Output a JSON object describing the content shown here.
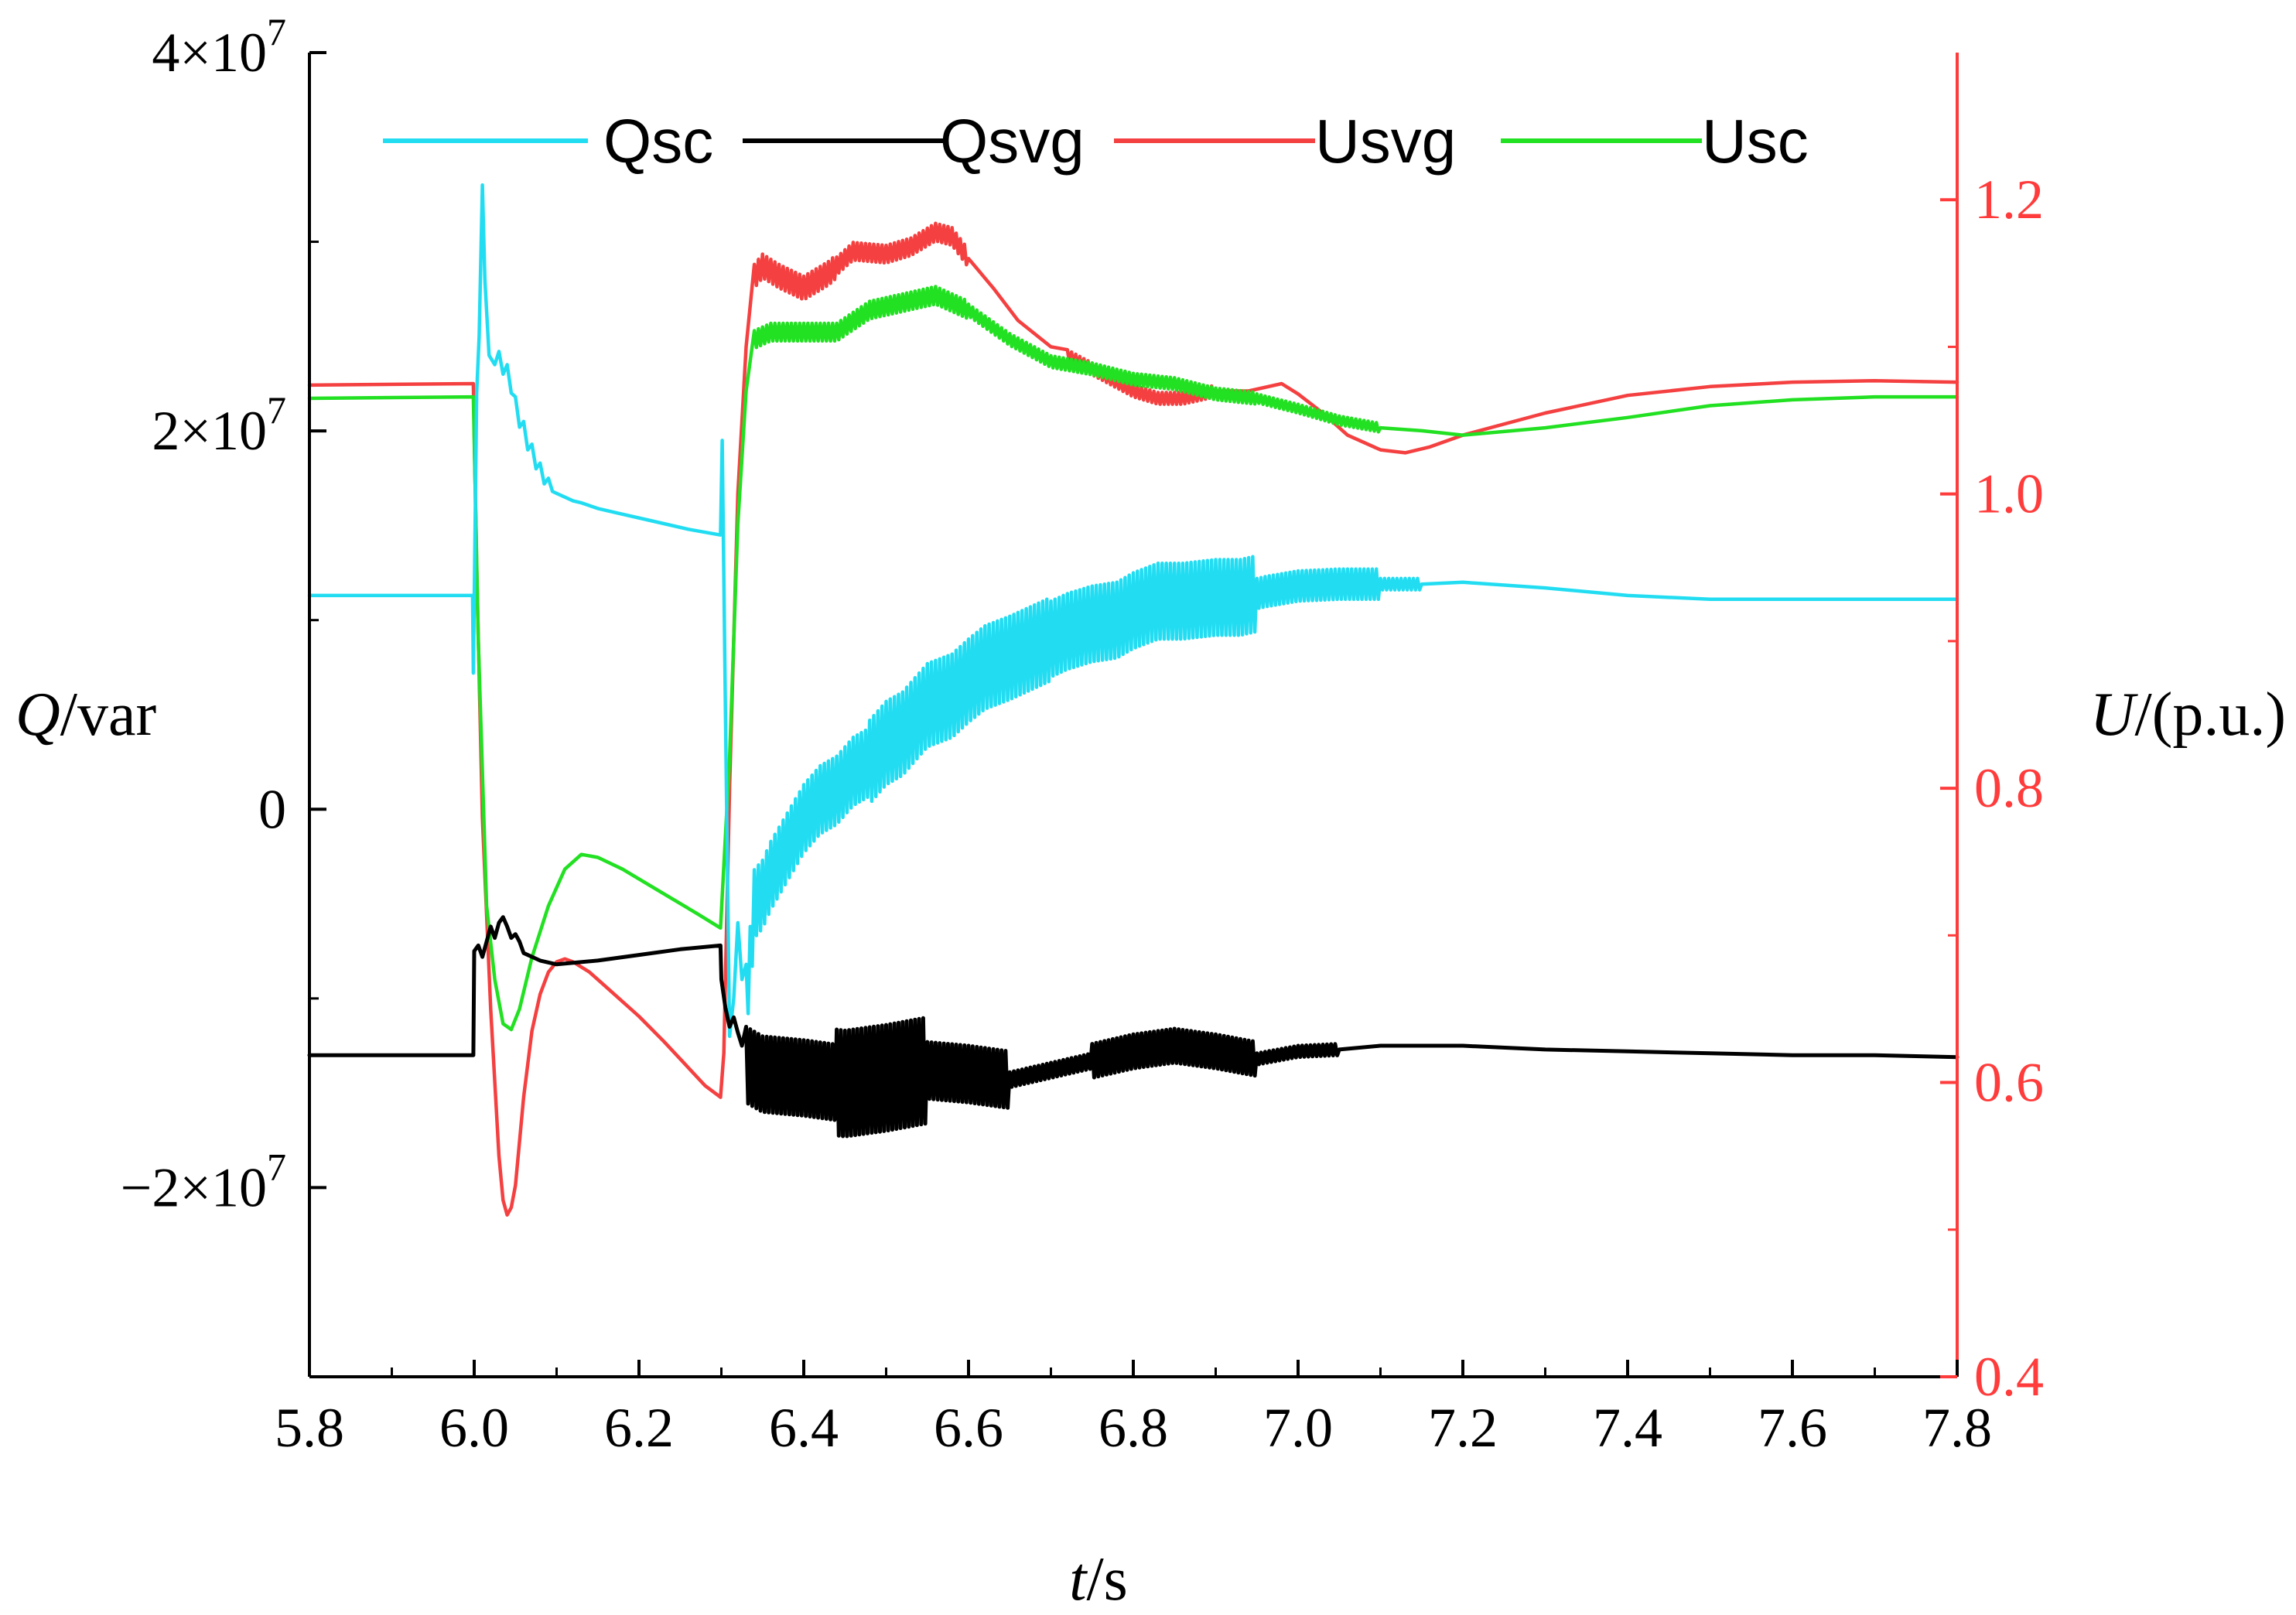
{
  "colors": {
    "axis": "#000000",
    "right_axis": "#ff3b3b",
    "Qsc": "#22ddf2",
    "Qsvg": "#000000",
    "Usvg": "#f44040",
    "Usc": "#22e022"
  },
  "chart_data": {
    "type": "line",
    "title": "",
    "xlabel": {
      "italic": "t",
      "rest": "/s"
    },
    "ylabel_left": {
      "italic": "Q",
      "rest": "/var"
    },
    "ylabel_right": {
      "italic": "U",
      "rest": "/(p.u.)"
    },
    "xlim": [
      5.8,
      7.8
    ],
    "ylim_left": [
      -30000000,
      40000000
    ],
    "ylim_right": [
      0.4,
      1.3
    ],
    "x_ticks": [
      {
        "v": 5.8,
        "label": "5.8"
      },
      {
        "v": 6.0,
        "label": "6.0"
      },
      {
        "v": 6.2,
        "label": "6.2"
      },
      {
        "v": 6.4,
        "label": "6.4"
      },
      {
        "v": 6.6,
        "label": "6.6"
      },
      {
        "v": 6.8,
        "label": "6.8"
      },
      {
        "v": 7.0,
        "label": "7.0"
      },
      {
        "v": 7.2,
        "label": "7.2"
      },
      {
        "v": 7.4,
        "label": "7.4"
      },
      {
        "v": 7.6,
        "label": "7.6"
      },
      {
        "v": 7.8,
        "label": "7.8"
      }
    ],
    "y_ticks_left": [
      {
        "v": 40000000,
        "mantissa": "4×10",
        "exp": "7"
      },
      {
        "v": 20000000,
        "mantissa": "2×10",
        "exp": "7"
      },
      {
        "v": 0,
        "mantissa": "0",
        "exp": ""
      },
      {
        "v": -20000000,
        "mantissa": "−2×10",
        "exp": "7"
      }
    ],
    "y_ticks_right": [
      {
        "v": 1.2,
        "label": "1.2"
      },
      {
        "v": 1.0,
        "label": "1.0"
      },
      {
        "v": 0.8,
        "label": "0.8"
      },
      {
        "v": 0.6,
        "label": "0.6"
      },
      {
        "v": 0.4,
        "label": "0.4"
      }
    ],
    "legend": {
      "position": "top",
      "entries": [
        "Qsc",
        "Qsvg",
        "Usvg",
        "Usc"
      ]
    },
    "series": [
      {
        "name": "Qsc",
        "axis": "left",
        "points": [
          [
            5.8,
            11300000
          ],
          [
            5.998,
            11300000
          ],
          [
            5.999,
            7200000
          ],
          [
            6.003,
            22000000
          ],
          [
            6.006,
            25000000
          ],
          [
            6.01,
            33000000
          ],
          [
            6.013,
            28000000
          ],
          [
            6.018,
            24000000
          ],
          [
            6.025,
            23500000
          ],
          [
            6.03,
            24200000
          ],
          [
            6.035,
            23000000
          ],
          [
            6.04,
            23500000
          ],
          [
            6.045,
            22000000
          ],
          [
            6.05,
            21800000
          ],
          [
            6.055,
            20200000
          ],
          [
            6.06,
            20500000
          ],
          [
            6.065,
            19000000
          ],
          [
            6.07,
            19300000
          ],
          [
            6.075,
            18000000
          ],
          [
            6.08,
            18300000
          ],
          [
            6.085,
            17200000
          ],
          [
            6.09,
            17500000
          ],
          [
            6.095,
            16800000
          ],
          [
            6.1,
            16700000
          ],
          [
            6.11,
            16500000
          ],
          [
            6.12,
            16300000
          ],
          [
            6.13,
            16200000
          ],
          [
            6.15,
            15900000
          ],
          [
            6.18,
            15600000
          ],
          [
            6.22,
            15200000
          ],
          [
            6.26,
            14800000
          ],
          [
            6.299,
            14500000
          ],
          [
            6.301,
            19500000
          ],
          [
            6.305,
            5000000
          ],
          [
            6.31,
            -12000000
          ],
          [
            6.315,
            -10000000
          ],
          [
            6.32,
            -6000000
          ],
          [
            6.325,
            -9000000
          ],
          [
            6.33,
            -10000000
          ],
          [
            6.335,
            -8000000
          ],
          [
            6.34,
            -5000000
          ],
          [
            6.35,
            -4500000
          ],
          [
            6.36,
            -3500000
          ],
          [
            6.38,
            -2000000
          ],
          [
            6.4,
            -500000
          ],
          [
            6.42,
            500000
          ],
          [
            6.44,
            1000000
          ],
          [
            6.46,
            2000000
          ],
          [
            6.48,
            2500000
          ],
          [
            6.5,
            3500000
          ],
          [
            6.52,
            4000000
          ],
          [
            6.55,
            5500000
          ],
          [
            6.58,
            6000000
          ],
          [
            6.6,
            6800000
          ],
          [
            6.62,
            7500000
          ],
          [
            6.65,
            8000000
          ],
          [
            6.68,
            8600000
          ],
          [
            6.7,
            9000000
          ],
          [
            6.72,
            9400000
          ],
          [
            6.75,
            9800000
          ],
          [
            6.78,
            10000000
          ],
          [
            6.8,
            10500000
          ],
          [
            6.83,
            11000000
          ],
          [
            6.86,
            11000000
          ],
          [
            6.9,
            11200000
          ],
          [
            6.93,
            11200000
          ],
          [
            6.96,
            11500000
          ],
          [
            7.0,
            11800000
          ],
          [
            7.05,
            11900000
          ],
          [
            7.1,
            11900000
          ],
          [
            7.15,
            11900000
          ],
          [
            7.2,
            12000000
          ],
          [
            7.3,
            11700000
          ],
          [
            7.4,
            11300000
          ],
          [
            7.5,
            11100000
          ],
          [
            7.6,
            11100000
          ],
          [
            7.7,
            11100000
          ],
          [
            7.8,
            11100000
          ]
        ],
        "oscillation": [
          [
            6.33,
            6.48,
            1800000
          ],
          [
            6.48,
            6.7,
            2200000
          ],
          [
            6.7,
            6.95,
            2000000
          ],
          [
            6.95,
            7.1,
            800000
          ],
          [
            7.1,
            7.15,
            300000
          ]
        ]
      },
      {
        "name": "Qsvg",
        "axis": "left",
        "points": [
          [
            5.8,
            -13000000
          ],
          [
            5.999,
            -13000000
          ],
          [
            6.0,
            -7500000
          ],
          [
            6.005,
            -7200000
          ],
          [
            6.01,
            -7800000
          ],
          [
            6.015,
            -7000000
          ],
          [
            6.02,
            -6200000
          ],
          [
            6.025,
            -6800000
          ],
          [
            6.03,
            -6000000
          ],
          [
            6.035,
            -5700000
          ],
          [
            6.04,
            -6200000
          ],
          [
            6.045,
            -6800000
          ],
          [
            6.05,
            -6600000
          ],
          [
            6.055,
            -7000000
          ],
          [
            6.06,
            -7600000
          ],
          [
            6.08,
            -8000000
          ],
          [
            6.1,
            -8200000
          ],
          [
            6.15,
            -8000000
          ],
          [
            6.2,
            -7700000
          ],
          [
            6.25,
            -7400000
          ],
          [
            6.299,
            -7200000
          ],
          [
            6.3,
            -9000000
          ],
          [
            6.305,
            -10500000
          ],
          [
            6.31,
            -11500000
          ],
          [
            6.315,
            -11000000
          ],
          [
            6.32,
            -11800000
          ],
          [
            6.325,
            -12500000
          ],
          [
            6.33,
            -13500000
          ],
          [
            6.35,
            -14000000
          ],
          [
            6.4,
            -14200000
          ],
          [
            6.45,
            -14500000
          ],
          [
            6.5,
            -14200000
          ],
          [
            6.55,
            -13800000
          ],
          [
            6.6,
            -14000000
          ],
          [
            6.65,
            -14300000
          ],
          [
            6.7,
            -13800000
          ],
          [
            6.75,
            -13300000
          ],
          [
            6.8,
            -12800000
          ],
          [
            6.85,
            -12500000
          ],
          [
            6.9,
            -12800000
          ],
          [
            6.95,
            -13200000
          ],
          [
            7.0,
            -12800000
          ],
          [
            7.05,
            -12700000
          ],
          [
            7.1,
            -12500000
          ],
          [
            7.2,
            -12500000
          ],
          [
            7.3,
            -12700000
          ],
          [
            7.4,
            -12800000
          ],
          [
            7.5,
            -12900000
          ],
          [
            7.6,
            -13000000
          ],
          [
            7.7,
            -13000000
          ],
          [
            7.8,
            -13100000
          ]
        ],
        "oscillation": [
          [
            6.33,
            6.44,
            2000000
          ],
          [
            6.44,
            6.55,
            2800000
          ],
          [
            6.55,
            6.65,
            1500000
          ],
          [
            6.65,
            6.75,
            400000
          ],
          [
            6.75,
            6.95,
            900000
          ],
          [
            6.95,
            7.05,
            300000
          ]
        ]
      },
      {
        "name": "Usvg",
        "axis": "right",
        "points": [
          [
            5.8,
            1.074
          ],
          [
            5.999,
            1.075
          ],
          [
            6.003,
            0.95
          ],
          [
            6.01,
            0.78
          ],
          [
            6.02,
            0.65
          ],
          [
            6.03,
            0.55
          ],
          [
            6.035,
            0.52
          ],
          [
            6.04,
            0.51
          ],
          [
            6.045,
            0.515
          ],
          [
            6.05,
            0.53
          ],
          [
            6.06,
            0.59
          ],
          [
            6.07,
            0.635
          ],
          [
            6.08,
            0.66
          ],
          [
            6.09,
            0.675
          ],
          [
            6.1,
            0.682
          ],
          [
            6.11,
            0.684
          ],
          [
            6.12,
            0.682
          ],
          [
            6.14,
            0.675
          ],
          [
            6.17,
            0.66
          ],
          [
            6.2,
            0.645
          ],
          [
            6.23,
            0.628
          ],
          [
            6.26,
            0.61
          ],
          [
            6.28,
            0.598
          ],
          [
            6.299,
            0.59
          ],
          [
            6.303,
            0.62
          ],
          [
            6.31,
            0.8
          ],
          [
            6.32,
            1.0
          ],
          [
            6.33,
            1.1
          ],
          [
            6.34,
            1.148
          ],
          [
            6.35,
            1.155
          ],
          [
            6.37,
            1.148
          ],
          [
            6.4,
            1.14
          ],
          [
            6.43,
            1.15
          ],
          [
            6.46,
            1.165
          ],
          [
            6.5,
            1.163
          ],
          [
            6.53,
            1.168
          ],
          [
            6.56,
            1.178
          ],
          [
            6.58,
            1.175
          ],
          [
            6.6,
            1.16
          ],
          [
            6.63,
            1.14
          ],
          [
            6.66,
            1.118
          ],
          [
            6.7,
            1.1
          ],
          [
            6.75,
            1.085
          ],
          [
            6.8,
            1.07
          ],
          [
            6.83,
            1.065
          ],
          [
            6.86,
            1.065
          ],
          [
            6.9,
            1.07
          ],
          [
            6.94,
            1.07
          ],
          [
            6.98,
            1.075
          ],
          [
            7.0,
            1.068
          ],
          [
            7.03,
            1.055
          ],
          [
            7.06,
            1.04
          ],
          [
            7.1,
            1.03
          ],
          [
            7.13,
            1.028
          ],
          [
            7.16,
            1.032
          ],
          [
            7.2,
            1.04
          ],
          [
            7.3,
            1.055
          ],
          [
            7.4,
            1.067
          ],
          [
            7.5,
            1.073
          ],
          [
            7.6,
            1.076
          ],
          [
            7.7,
            1.077
          ],
          [
            7.8,
            1.076
          ]
        ],
        "oscillation": [
          [
            6.34,
            6.44,
            0.008
          ],
          [
            6.44,
            6.6,
            0.006
          ],
          [
            6.72,
            6.9,
            0.004
          ]
        ]
      },
      {
        "name": "Usc",
        "axis": "right",
        "points": [
          [
            5.8,
            1.065
          ],
          [
            5.999,
            1.066
          ],
          [
            6.005,
            0.9
          ],
          [
            6.015,
            0.72
          ],
          [
            6.025,
            0.67
          ],
          [
            6.035,
            0.64
          ],
          [
            6.045,
            0.636
          ],
          [
            6.055,
            0.65
          ],
          [
            6.07,
            0.685
          ],
          [
            6.09,
            0.72
          ],
          [
            6.11,
            0.745
          ],
          [
            6.13,
            0.755
          ],
          [
            6.15,
            0.753
          ],
          [
            6.18,
            0.745
          ],
          [
            6.21,
            0.735
          ],
          [
            6.24,
            0.725
          ],
          [
            6.27,
            0.715
          ],
          [
            6.299,
            0.705
          ],
          [
            6.31,
            0.82
          ],
          [
            6.32,
            0.98
          ],
          [
            6.33,
            1.07
          ],
          [
            6.34,
            1.105
          ],
          [
            6.36,
            1.11
          ],
          [
            6.4,
            1.11
          ],
          [
            6.44,
            1.11
          ],
          [
            6.48,
            1.125
          ],
          [
            6.52,
            1.13
          ],
          [
            6.56,
            1.135
          ],
          [
            6.6,
            1.125
          ],
          [
            6.65,
            1.105
          ],
          [
            6.7,
            1.09
          ],
          [
            6.75,
            1.085
          ],
          [
            6.8,
            1.078
          ],
          [
            6.85,
            1.075
          ],
          [
            6.9,
            1.068
          ],
          [
            6.95,
            1.065
          ],
          [
            7.0,
            1.058
          ],
          [
            7.05,
            1.05
          ],
          [
            7.1,
            1.045
          ],
          [
            7.15,
            1.043
          ],
          [
            7.2,
            1.04
          ],
          [
            7.3,
            1.045
          ],
          [
            7.4,
            1.052
          ],
          [
            7.5,
            1.06
          ],
          [
            7.6,
            1.064
          ],
          [
            7.7,
            1.066
          ],
          [
            7.8,
            1.066
          ]
        ],
        "oscillation": [
          [
            6.34,
            6.6,
            0.006
          ],
          [
            6.6,
            6.95,
            0.004
          ],
          [
            6.95,
            7.1,
            0.003
          ]
        ]
      }
    ]
  }
}
